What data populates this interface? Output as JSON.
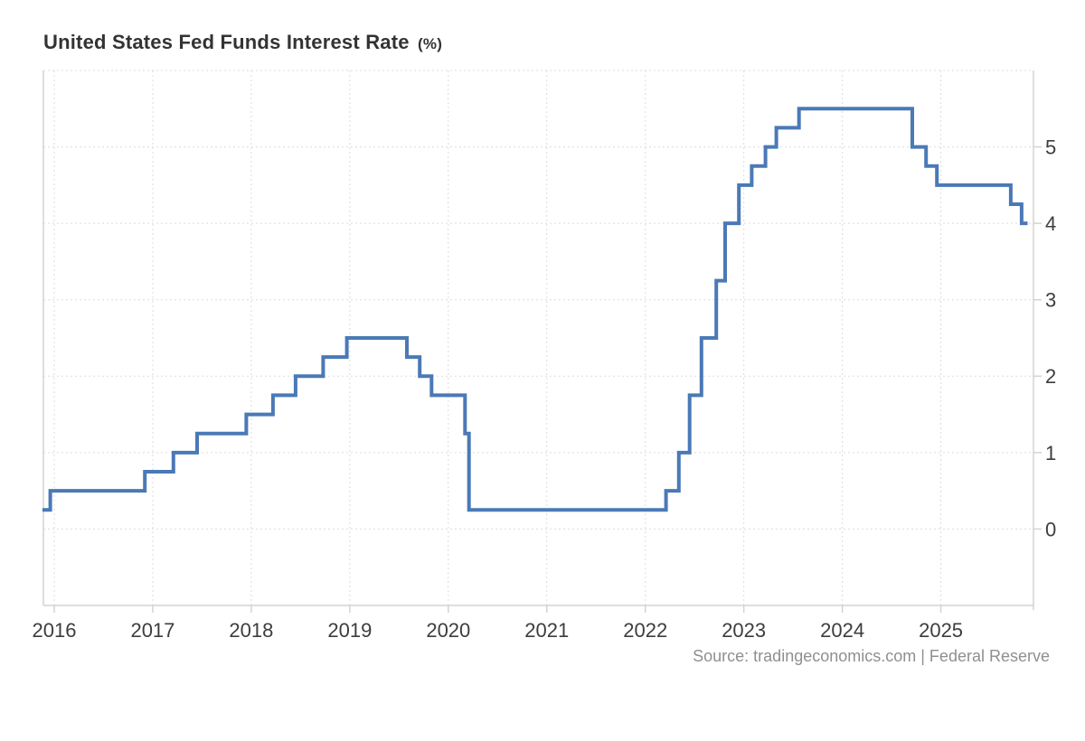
{
  "page": {
    "title_main": "United States Fed Funds Interest Rate",
    "title_unit": "(%)",
    "source_text": "Source: tradingeconomics.com | Federal Reserve"
  },
  "chart_data": {
    "type": "line",
    "subtype": "step",
    "title": "United States Fed Funds Interest Rate (%)",
    "xlabel": "",
    "ylabel": "",
    "legend": "none",
    "grid": "dotted",
    "xlim": [
      2015.89,
      2025.94
    ],
    "ylim": [
      -1,
      6
    ],
    "x_ticks": [
      2016,
      2017,
      2018,
      2019,
      2020,
      2021,
      2022,
      2023,
      2024,
      2025
    ],
    "y_ticks": [
      0,
      1,
      2,
      3,
      4,
      5
    ],
    "series": [
      {
        "name": "Fed Funds Interest Rate",
        "unit": "%",
        "points": [
          [
            2015.88,
            0.25
          ],
          [
            2015.96,
            0.5
          ],
          [
            2016.92,
            0.75
          ],
          [
            2017.21,
            1.0
          ],
          [
            2017.45,
            1.25
          ],
          [
            2017.95,
            1.5
          ],
          [
            2018.22,
            1.75
          ],
          [
            2018.45,
            2.0
          ],
          [
            2018.73,
            2.25
          ],
          [
            2018.97,
            2.5
          ],
          [
            2019.58,
            2.25
          ],
          [
            2019.71,
            2.0
          ],
          [
            2019.83,
            1.75
          ],
          [
            2020.17,
            1.25
          ],
          [
            2020.21,
            0.25
          ],
          [
            2022.21,
            0.5
          ],
          [
            2022.34,
            1.0
          ],
          [
            2022.45,
            1.75
          ],
          [
            2022.57,
            2.5
          ],
          [
            2022.72,
            3.25
          ],
          [
            2022.81,
            4.0
          ],
          [
            2022.95,
            4.5
          ],
          [
            2023.08,
            4.75
          ],
          [
            2023.22,
            5.0
          ],
          [
            2023.33,
            5.25
          ],
          [
            2023.56,
            5.5
          ],
          [
            2024.71,
            5.0
          ],
          [
            2024.85,
            4.75
          ],
          [
            2024.96,
            4.5
          ],
          [
            2025.71,
            4.25
          ],
          [
            2025.82,
            4.0
          ]
        ],
        "end_x": 2025.88,
        "last_value": 4.0
      }
    ],
    "colors": {
      "line": "#4a79b6",
      "grid": "#dcdcdc",
      "axis": "#d3d3d3",
      "tick": "#d3d3d3",
      "axis_text": "#3d3d3d",
      "title_text": "#333333",
      "source_text": "#8f8f8f"
    }
  }
}
